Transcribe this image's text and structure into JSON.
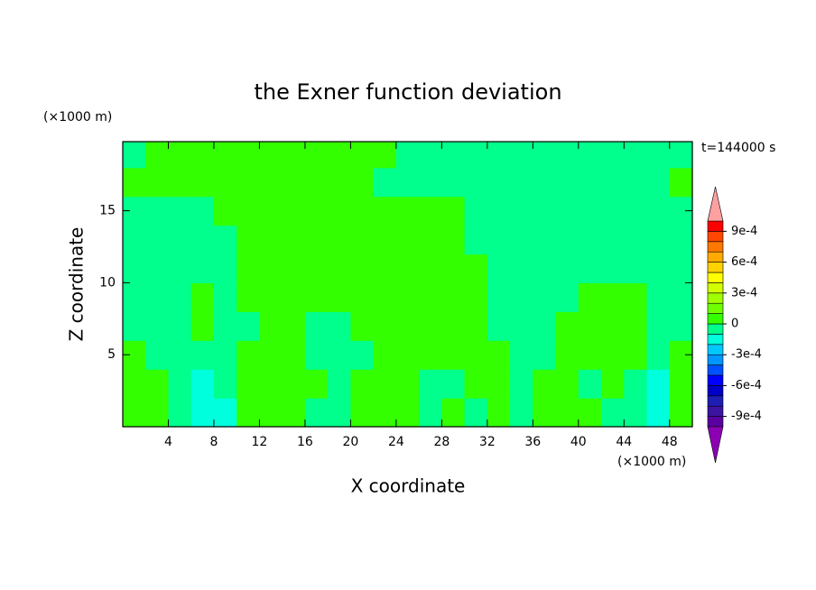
{
  "chart_data": {
    "type": "contourf",
    "title": "the Exner function deviation",
    "xlabel": "X coordinate",
    "ylabel": "Z coordinate",
    "x_unit": "(×1000 m)",
    "y_unit": "(×1000 m)",
    "time_label": "t=144000 s",
    "xlim": [
      0,
      50
    ],
    "ylim": [
      0,
      19.8
    ],
    "xticks": [
      4,
      8,
      12,
      16,
      20,
      24,
      28,
      32,
      36,
      40,
      44,
      48
    ],
    "yticks": [
      5,
      10,
      15
    ],
    "x_edges": [
      0,
      2,
      4,
      6,
      8,
      10,
      12,
      14,
      16,
      18,
      20,
      22,
      24,
      26,
      28,
      30,
      32,
      34,
      36,
      38,
      40,
      42,
      44,
      46,
      48,
      50
    ],
    "z_edges": [
      0,
      2,
      4,
      6,
      8,
      10,
      12,
      14,
      16,
      18,
      19.8
    ],
    "levels": [
      -0.001,
      -0.0009,
      -0.0008,
      -0.0007,
      -0.0006,
      -0.0005,
      -0.0004,
      -0.0003,
      -0.0002,
      -0.0001,
      0,
      0.0001,
      0.0002,
      0.0003,
      0.0004,
      0.0005,
      0.0006,
      0.0007,
      0.0008,
      0.0009,
      0.001
    ],
    "colors": [
      "#5a00a0",
      "#3c14a0",
      "#1e1eb4",
      "#0000c8",
      "#0000ff",
      "#0050ff",
      "#0096ff",
      "#00c8ff",
      "#00ffdc",
      "#00ff8c",
      "#33ff00",
      "#70ff00",
      "#a0ff00",
      "#d2ff00",
      "#ffff00",
      "#ffd200",
      "#ffaa00",
      "#ff7800",
      "#ff4600",
      "#ff0000"
    ],
    "under_color": "#8c00b4",
    "over_color": "#ffa0a0",
    "colorbar_ticks": [
      {
        "value": 0.0009,
        "label": "9e-4"
      },
      {
        "value": 0.0006,
        "label": "6e-4"
      },
      {
        "value": 0.0003,
        "label": "3e-4"
      },
      0,
      {
        "value": -0.0003,
        "label": "-3e-4"
      },
      {
        "value": -0.0006,
        "label": "-6e-4"
      },
      {
        "value": -0.0009,
        "label": "-9e-4"
      }
    ],
    "z": [
      [
        5e-05,
        5e-05,
        -5e-05,
        -0.00015,
        -0.00015,
        5e-05,
        5e-05,
        5e-05,
        -5e-05,
        -5e-05,
        5e-05,
        5e-05,
        5e-05,
        -5e-05,
        5e-05,
        -5e-05,
        5e-05,
        -5e-05,
        5e-05,
        5e-05,
        5e-05,
        -5e-05,
        -5e-05,
        -0.00015,
        5e-05
      ],
      [
        5e-05,
        5e-05,
        -5e-05,
        -0.00015,
        -5e-05,
        5e-05,
        5e-05,
        5e-05,
        5e-05,
        -5e-05,
        5e-05,
        5e-05,
        5e-05,
        -5e-05,
        -5e-05,
        5e-05,
        5e-05,
        -5e-05,
        5e-05,
        5e-05,
        -5e-05,
        5e-05,
        -5e-05,
        -0.00015,
        5e-05
      ],
      [
        5e-05,
        -5e-05,
        -5e-05,
        -5e-05,
        -5e-05,
        5e-05,
        5e-05,
        5e-05,
        -5e-05,
        -5e-05,
        -5e-05,
        5e-05,
        5e-05,
        5e-05,
        5e-05,
        5e-05,
        5e-05,
        -5e-05,
        -5e-05,
        5e-05,
        5e-05,
        5e-05,
        5e-05,
        -5e-05,
        5e-05
      ],
      [
        -5e-05,
        -5e-05,
        -5e-05,
        5e-05,
        -5e-05,
        -5e-05,
        5e-05,
        5e-05,
        -5e-05,
        -5e-05,
        5e-05,
        5e-05,
        5e-05,
        5e-05,
        5e-05,
        5e-05,
        -5e-05,
        -5e-05,
        -5e-05,
        5e-05,
        5e-05,
        5e-05,
        5e-05,
        -5e-05,
        -5e-05
      ],
      [
        -5e-05,
        -5e-05,
        -5e-05,
        5e-05,
        -5e-05,
        5e-05,
        5e-05,
        5e-05,
        5e-05,
        5e-05,
        5e-05,
        5e-05,
        5e-05,
        5e-05,
        5e-05,
        5e-05,
        -5e-05,
        -5e-05,
        -5e-05,
        -5e-05,
        5e-05,
        5e-05,
        5e-05,
        -5e-05,
        -5e-05
      ],
      [
        -5e-05,
        -5e-05,
        -5e-05,
        -5e-05,
        -5e-05,
        5e-05,
        5e-05,
        5e-05,
        5e-05,
        5e-05,
        5e-05,
        5e-05,
        5e-05,
        5e-05,
        5e-05,
        5e-05,
        -5e-05,
        -5e-05,
        -5e-05,
        -5e-05,
        -5e-05,
        -5e-05,
        -5e-05,
        -5e-05,
        -5e-05
      ],
      [
        -5e-05,
        -5e-05,
        -5e-05,
        -5e-05,
        -5e-05,
        5e-05,
        5e-05,
        5e-05,
        5e-05,
        5e-05,
        5e-05,
        5e-05,
        5e-05,
        5e-05,
        5e-05,
        -5e-05,
        -5e-05,
        -5e-05,
        -5e-05,
        -5e-05,
        -5e-05,
        -5e-05,
        -5e-05,
        -5e-05,
        -5e-05
      ],
      [
        -5e-05,
        -5e-05,
        -5e-05,
        -5e-05,
        5e-05,
        5e-05,
        5e-05,
        5e-05,
        5e-05,
        5e-05,
        5e-05,
        5e-05,
        5e-05,
        5e-05,
        5e-05,
        -5e-05,
        -5e-05,
        -5e-05,
        -5e-05,
        -5e-05,
        -5e-05,
        -5e-05,
        -5e-05,
        -5e-05,
        -5e-05
      ],
      [
        5e-05,
        5e-05,
        5e-05,
        5e-05,
        5e-05,
        5e-05,
        5e-05,
        5e-05,
        5e-05,
        5e-05,
        5e-05,
        -5e-05,
        -5e-05,
        -5e-05,
        -5e-05,
        -5e-05,
        -5e-05,
        -5e-05,
        -5e-05,
        -5e-05,
        -5e-05,
        -5e-05,
        -5e-05,
        -5e-05,
        5e-05
      ],
      [
        -5e-05,
        5e-05,
        5e-05,
        5e-05,
        5e-05,
        5e-05,
        5e-05,
        5e-05,
        5e-05,
        5e-05,
        5e-05,
        5e-05,
        -5e-05,
        -5e-05,
        -5e-05,
        -5e-05,
        -5e-05,
        -5e-05,
        -5e-05,
        -5e-05,
        -5e-05,
        -5e-05,
        -5e-05,
        -5e-05,
        -5e-05
      ]
    ]
  }
}
